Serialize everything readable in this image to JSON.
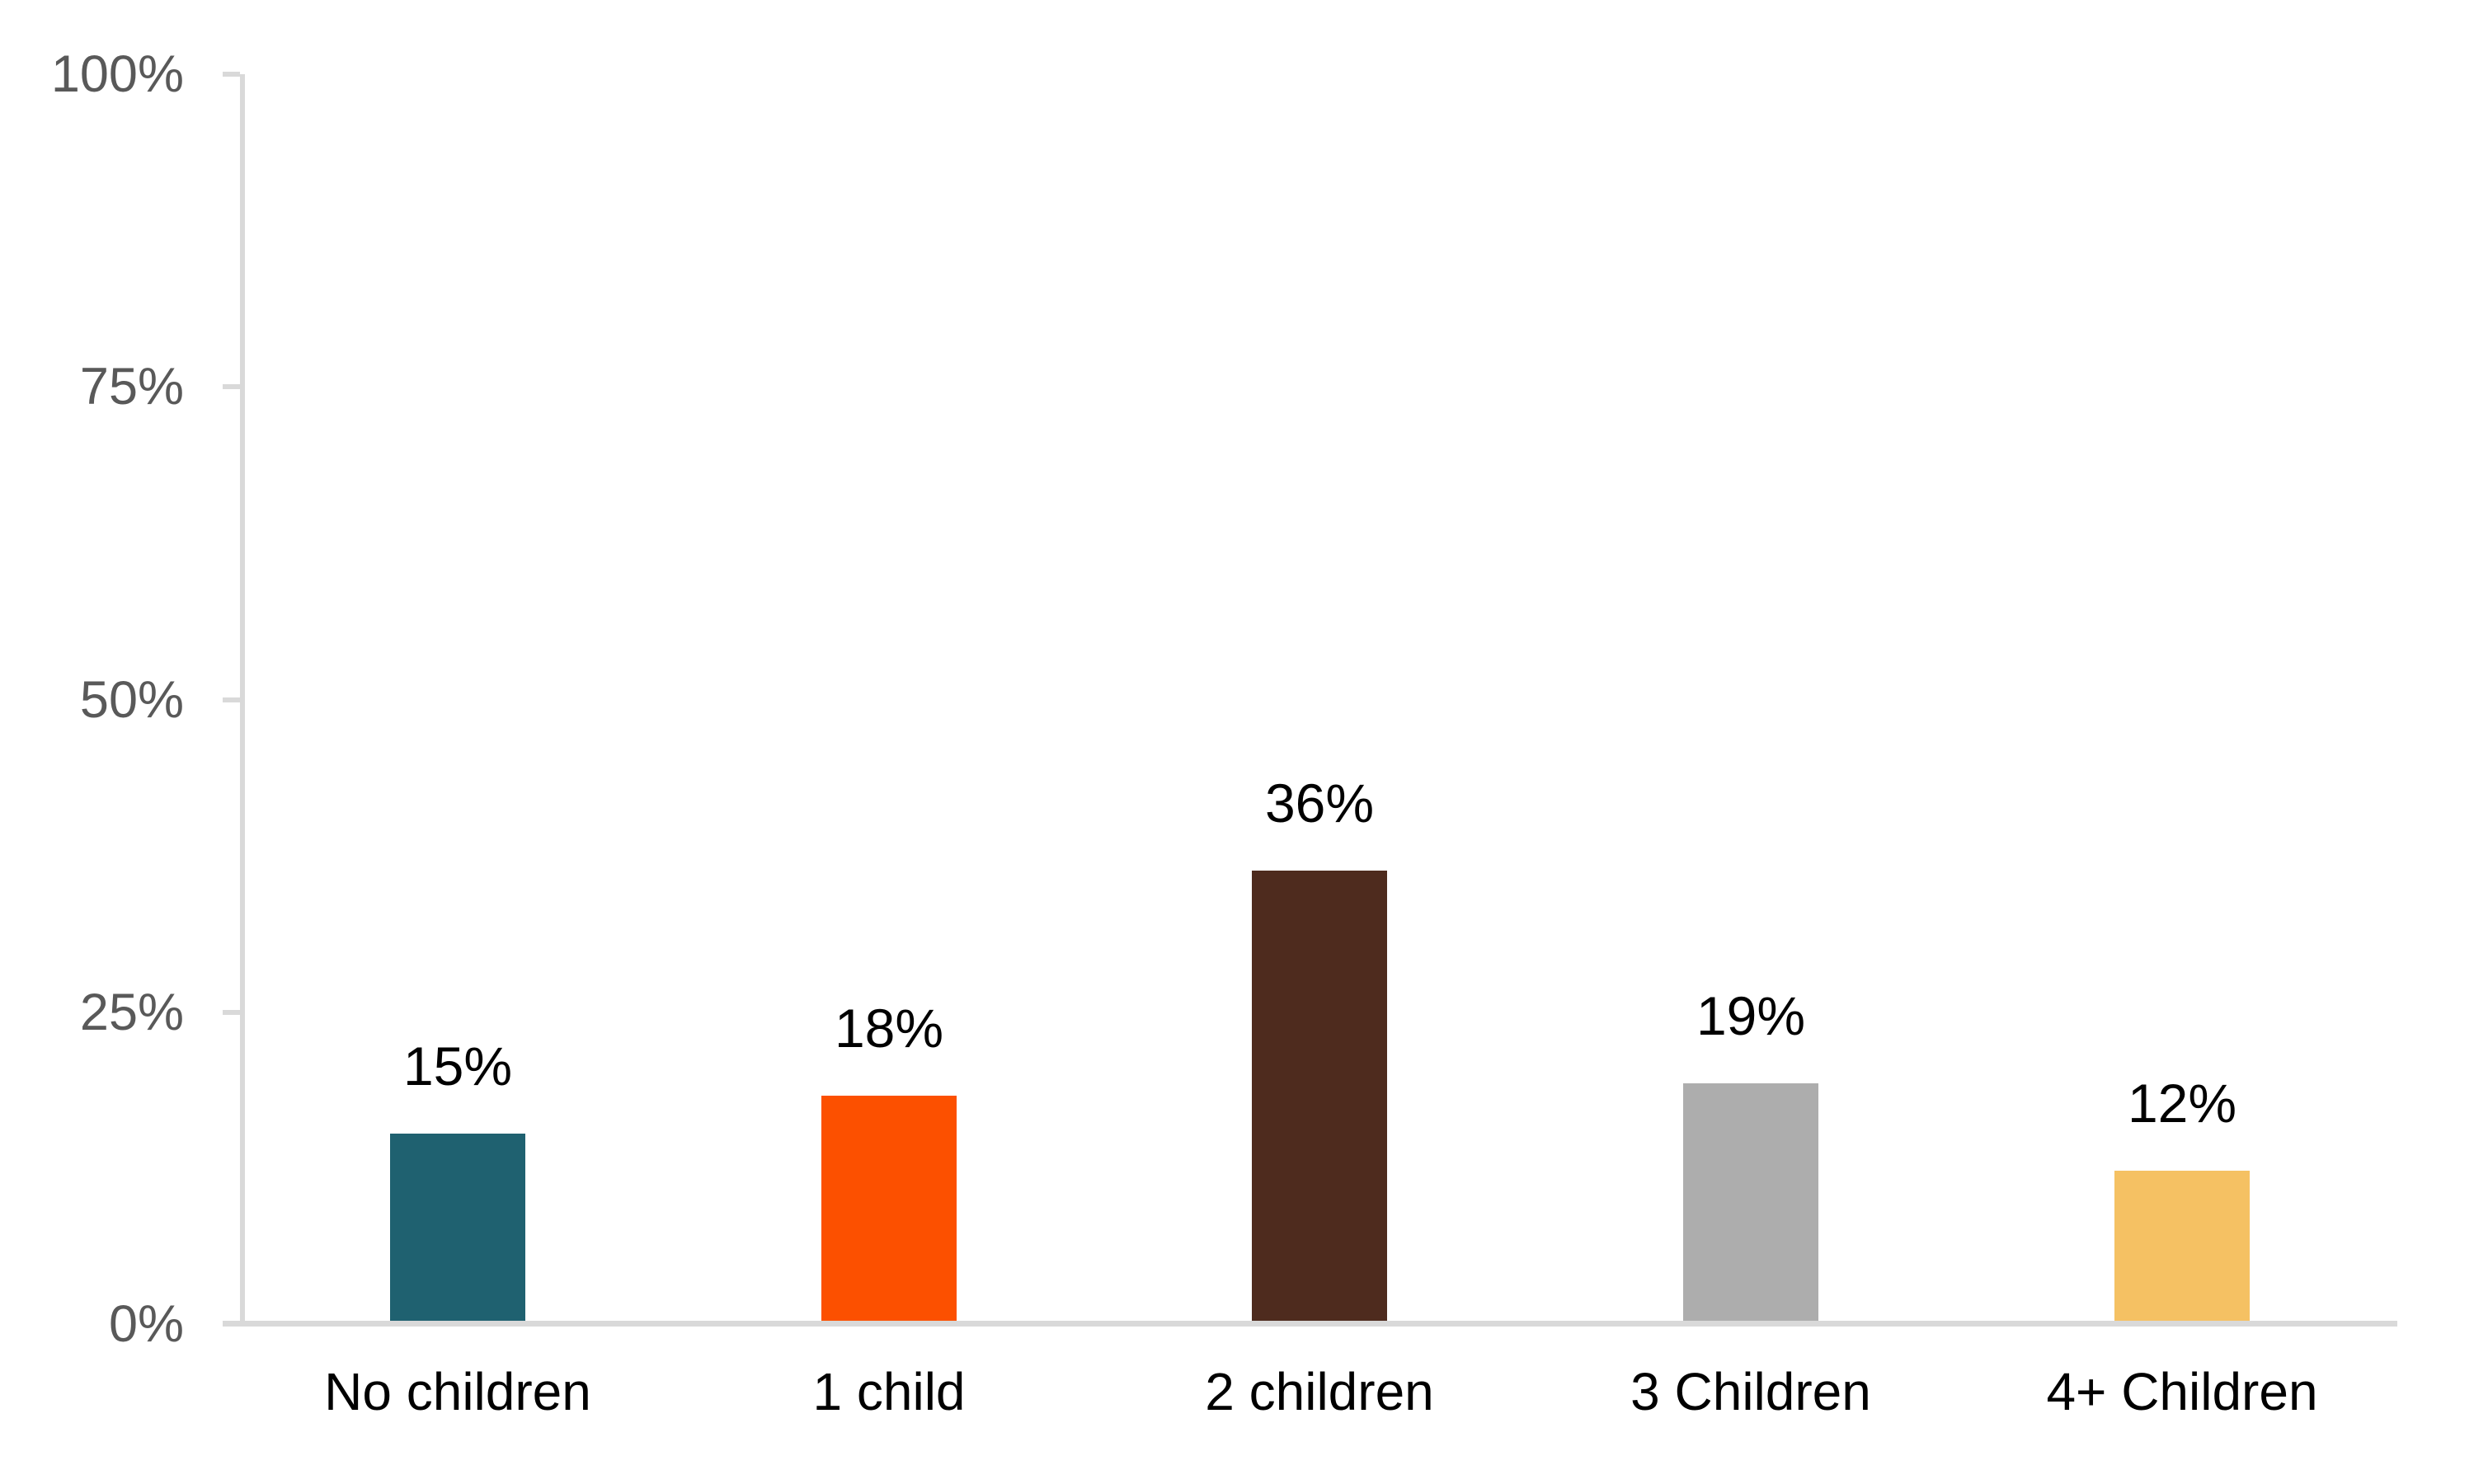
{
  "chart_data": {
    "type": "bar",
    "title": "",
    "categories": [
      "No children",
      "1 child",
      "2 children",
      "3 Children",
      "4+ Children"
    ],
    "values": [
      15,
      18,
      36,
      19,
      12
    ],
    "value_labels": [
      "15%",
      "18%",
      "36%",
      "19%",
      "12%"
    ],
    "bar_colors": [
      "#1F6170",
      "#FC5000",
      "#4E2B1E",
      "#ADADAD",
      "#F5C163"
    ],
    "ytick_labels": [
      "100%",
      "75%",
      "50%",
      "25%",
      "0%"
    ],
    "ytick_values": [
      100,
      75,
      50,
      25,
      0
    ],
    "ylim": [
      0,
      100
    ],
    "xlabel": "",
    "ylabel": "",
    "grid": false,
    "legend": false,
    "axis_line_color": "#D9D9D9",
    "ytick_label_color": "#595959",
    "data_label_color": "#000000",
    "background_color": "#FFFFFF"
  }
}
